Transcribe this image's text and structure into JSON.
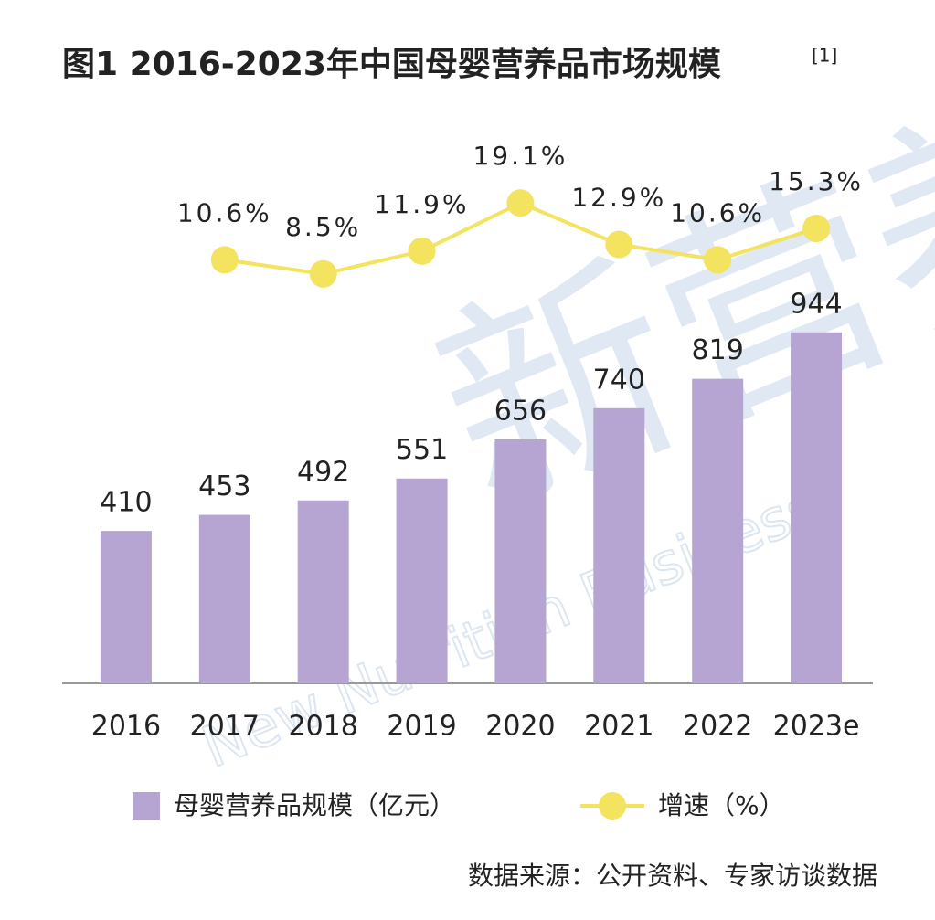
{
  "chart_data": {
    "type": "bar_line",
    "title": "图1 2016-2023年中国母婴营养品市场规模",
    "title_note": "[1]",
    "categories": [
      "2016",
      "2017",
      "2018",
      "2019",
      "2020",
      "2021",
      "2022",
      "2023e"
    ],
    "series": [
      {
        "name": "母婴营养品规模（亿元）",
        "color": "#b6a4d2",
        "type": "bar",
        "values": [
          410,
          453,
          492,
          551,
          656,
          740,
          819,
          944
        ]
      },
      {
        "name": "增速（%）",
        "color": "#f3e35e",
        "type": "line",
        "axis": "y2",
        "values": [
          null,
          10.6,
          8.5,
          11.9,
          19.1,
          12.9,
          10.6,
          15.3
        ],
        "value_labels": [
          null,
          "10.6%",
          "8.5%",
          "11.9%",
          "19.1%",
          "12.9%",
          "10.6%",
          "15.3%"
        ]
      }
    ],
    "ylim": [
      0,
      1000
    ],
    "y2lim": [
      0,
      25
    ],
    "source": "数据来源：公开资料、专家访谈数据",
    "watermark": {
      "cn": "新营养",
      "en": "New Nutrition Business"
    }
  }
}
